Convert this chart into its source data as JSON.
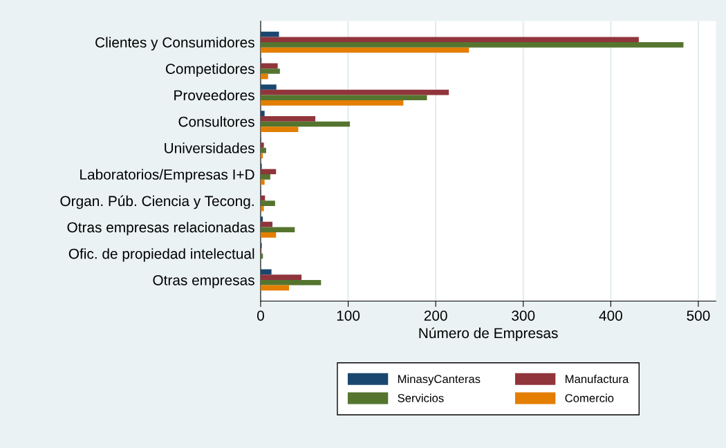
{
  "chart_data": {
    "type": "bar",
    "orientation": "horizontal",
    "xlabel": "Número de Empresas",
    "categories": [
      "Clientes y Consumidores",
      "Competidores",
      "Proveedores",
      "Consultores",
      "Universidades",
      "Laboratorios/Empresas I+D",
      "Organ. Púb. Ciencia y Tecong.",
      "Otras empresas relacionadas",
      "Ofic. de propiedad intelectual",
      "Otras empresas"
    ],
    "series": [
      {
        "name": "MinasyCanteras",
        "color": "#1a476f",
        "values": [
          21,
          1,
          18,
          4.5,
          0.5,
          1.3,
          0.5,
          2.5,
          1.3,
          12.4
        ]
      },
      {
        "name": "Manufactura",
        "color": "#90353b",
        "values": [
          432,
          19.5,
          215,
          62.5,
          3.7,
          17.6,
          5,
          13.5,
          1,
          46.7
        ]
      },
      {
        "name": "Servicios",
        "color": "#55752f",
        "values": [
          483,
          22,
          190,
          102,
          6.3,
          11,
          16.5,
          39,
          2.6,
          69
        ]
      },
      {
        "name": "Comercio",
        "color": "#e37e00",
        "values": [
          238,
          8.5,
          163,
          43,
          2.5,
          4.5,
          3.7,
          17.6,
          0,
          32.5
        ]
      }
    ],
    "xlim": [
      0,
      520
    ],
    "xticks": [
      0,
      100,
      200,
      300,
      400,
      500
    ],
    "grid": "x",
    "legend": "bottom"
  }
}
